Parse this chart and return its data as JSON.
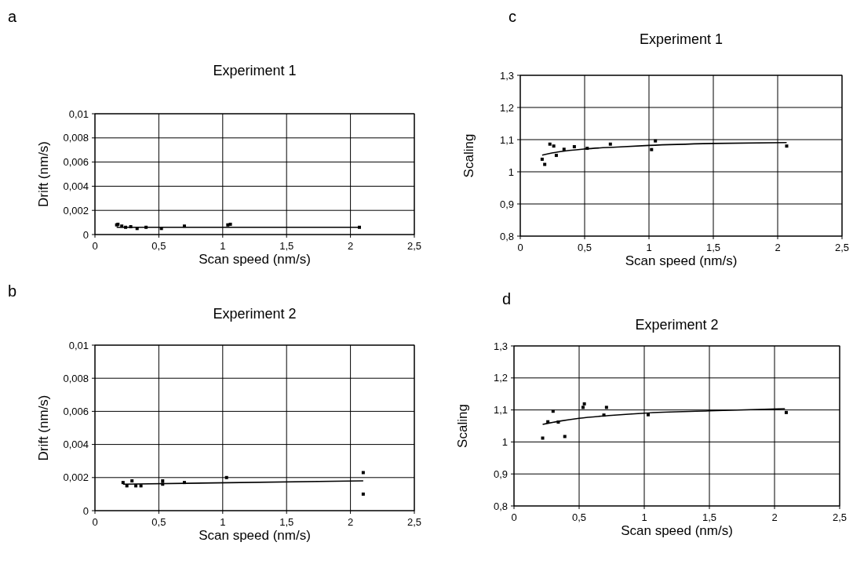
{
  "chart_data": [
    {
      "type": "scatter",
      "title": "Experiment 1",
      "xlabel": "Scan speed (nm/s)",
      "ylabel": "Drift (nm/s)",
      "annotations": [
        "a"
      ],
      "grid": true,
      "marker": "square",
      "xlim": [
        0,
        2.5
      ],
      "xticks": [
        {
          "value": 0,
          "label": "0"
        },
        {
          "value": 0.5,
          "label": "0,5"
        },
        {
          "value": 1,
          "label": "1"
        },
        {
          "value": 1.5,
          "label": "1,5"
        },
        {
          "value": 2,
          "label": "2"
        },
        {
          "value": 2.5,
          "label": "2,5"
        }
      ],
      "ylim": [
        0,
        0.01
      ],
      "yticks": [
        {
          "value": 0,
          "label": "0"
        },
        {
          "value": 0.002,
          "label": "0,002"
        },
        {
          "value": 0.004,
          "label": "0,004"
        },
        {
          "value": 0.006,
          "label": "0,006"
        },
        {
          "value": 0.008,
          "label": "0,008"
        },
        {
          "value": 0.01,
          "label": "0,01"
        }
      ],
      "series": [
        {
          "color": "#000000",
          "x": [
            0.17,
            0.18,
            0.21,
            0.24,
            0.28,
            0.33,
            0.4,
            0.52,
            0.7,
            1.04,
            1.06,
            2.07
          ],
          "values": [
            0.0008,
            0.00085,
            0.0007,
            0.0006,
            0.00065,
            0.0005,
            0.0006,
            0.0005,
            0.0007,
            0.0008,
            0.00085,
            0.0006
          ]
        },
        {
          "type": "line",
          "color": "#000000",
          "marker": "none",
          "x": [
            0.17,
            2.07
          ],
          "values": [
            0.0006,
            0.0006
          ]
        }
      ]
    },
    {
      "type": "scatter",
      "title": "Experiment 2",
      "xlabel": "Scan speed (nm/s)",
      "ylabel": "Drift (nm/s)",
      "annotations": [
        "b"
      ],
      "grid": true,
      "marker": "square",
      "xlim": [
        0,
        2.5
      ],
      "xticks": [
        {
          "value": 0,
          "label": "0"
        },
        {
          "value": 0.5,
          "label": "0,5"
        },
        {
          "value": 1,
          "label": "1"
        },
        {
          "value": 1.5,
          "label": "1,5"
        },
        {
          "value": 2,
          "label": "2"
        },
        {
          "value": 2.5,
          "label": "2,5"
        }
      ],
      "ylim": [
        0,
        0.01
      ],
      "yticks": [
        {
          "value": 0,
          "label": "0"
        },
        {
          "value": 0.002,
          "label": "0,002"
        },
        {
          "value": 0.004,
          "label": "0,004"
        },
        {
          "value": 0.006,
          "label": "0,006"
        },
        {
          "value": 0.008,
          "label": "0,008"
        },
        {
          "value": 0.01,
          "label": "0,01"
        }
      ],
      "series": [
        {
          "color": "#000000",
          "x": [
            0.22,
            0.25,
            0.29,
            0.32,
            0.36,
            0.53,
            0.53,
            0.7,
            1.03,
            2.1,
            2.1
          ],
          "values": [
            0.0017,
            0.0015,
            0.0018,
            0.0015,
            0.0015,
            0.0018,
            0.0016,
            0.0017,
            0.002,
            0.0023,
            0.001
          ]
        },
        {
          "type": "line",
          "color": "#000000",
          "marker": "none",
          "x": [
            0.22,
            2.1
          ],
          "values": [
            0.0016,
            0.0018
          ]
        }
      ]
    },
    {
      "type": "scatter",
      "title": "Experiment 1",
      "xlabel": "Scan speed (nm/s)",
      "ylabel": "Scaling",
      "annotations": [
        "c"
      ],
      "grid": true,
      "marker": "square",
      "xlim": [
        0,
        2.5
      ],
      "xticks": [
        {
          "value": 0,
          "label": "0"
        },
        {
          "value": 0.5,
          "label": "0,5"
        },
        {
          "value": 1,
          "label": "1"
        },
        {
          "value": 1.5,
          "label": "1,5"
        },
        {
          "value": 2,
          "label": "2"
        },
        {
          "value": 2.5,
          "label": "2,5"
        }
      ],
      "ylim": [
        0.8,
        1.3
      ],
      "yticks": [
        {
          "value": 0.8,
          "label": "0,8"
        },
        {
          "value": 0.9,
          "label": "0,9"
        },
        {
          "value": 1,
          "label": "1"
        },
        {
          "value": 1.1,
          "label": "1,1"
        },
        {
          "value": 1.2,
          "label": "1,2"
        },
        {
          "value": 1.3,
          "label": "1,3"
        }
      ],
      "series": [
        {
          "color": "#000000",
          "x": [
            0.17,
            0.19,
            0.23,
            0.26,
            0.28,
            0.34,
            0.42,
            0.52,
            0.7,
            1.02,
            1.05,
            2.07
          ],
          "values": [
            1.039,
            1.023,
            1.086,
            1.08,
            1.051,
            1.07,
            1.078,
            1.073,
            1.086,
            1.069,
            1.096,
            1.08
          ]
        },
        {
          "type": "line",
          "color": "#000000",
          "marker": "none",
          "x": [
            0.17,
            0.3,
            0.5,
            0.75,
            1,
            1.5,
            2.07
          ],
          "values": [
            1.052,
            1.062,
            1.071,
            1.077,
            1.082,
            1.088,
            1.091
          ]
        }
      ]
    },
    {
      "type": "scatter",
      "title": "Experiment 2",
      "xlabel": "Scan speed (nm/s)",
      "ylabel": "Scaling",
      "annotations": [
        "d"
      ],
      "grid": true,
      "marker": "square",
      "xlim": [
        0,
        2.5
      ],
      "xticks": [
        {
          "value": 0,
          "label": "0"
        },
        {
          "value": 0.5,
          "label": "0,5"
        },
        {
          "value": 1,
          "label": "1"
        },
        {
          "value": 1.5,
          "label": "1,5"
        },
        {
          "value": 2,
          "label": "2"
        },
        {
          "value": 2.5,
          "label": "2,5"
        }
      ],
      "ylim": [
        0.8,
        1.3
      ],
      "yticks": [
        {
          "value": 0.8,
          "label": "0,8"
        },
        {
          "value": 0.9,
          "label": "0,9"
        },
        {
          "value": 1,
          "label": "1"
        },
        {
          "value": 1.1,
          "label": "1,1"
        },
        {
          "value": 1.2,
          "label": "1,2"
        },
        {
          "value": 1.3,
          "label": "1,3"
        }
      ],
      "series": [
        {
          "color": "#000000",
          "x": [
            0.22,
            0.26,
            0.3,
            0.34,
            0.39,
            0.53,
            0.54,
            0.69,
            0.71,
            1.03,
            2.09
          ],
          "values": [
            1.012,
            1.063,
            1.096,
            1.062,
            1.017,
            1.108,
            1.119,
            1.084,
            1.108,
            1.085,
            1.092
          ]
        },
        {
          "type": "line",
          "color": "#000000",
          "marker": "none",
          "x": [
            0.22,
            0.35,
            0.5,
            0.75,
            1,
            1.5,
            2.08
          ],
          "values": [
            1.055,
            1.065,
            1.074,
            1.083,
            1.09,
            1.097,
            1.104
          ]
        }
      ]
    }
  ]
}
